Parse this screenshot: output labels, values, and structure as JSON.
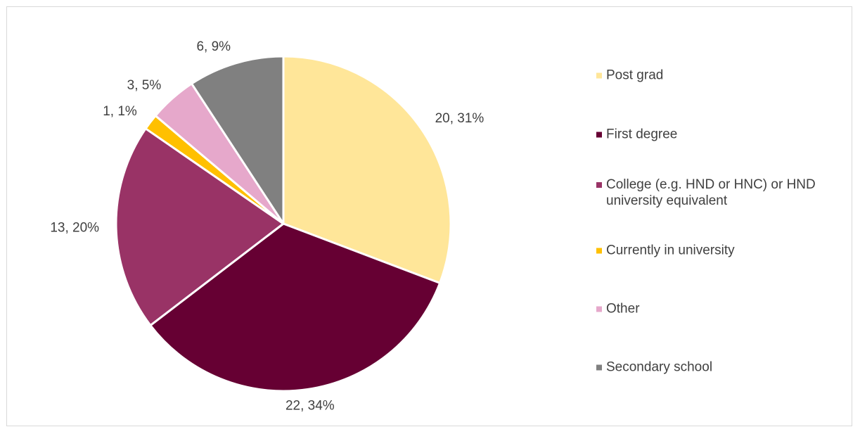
{
  "chart_data": {
    "type": "pie",
    "categories": [
      "Post grad",
      "First degree",
      "College (e.g. HND or HNC) or HND university equivalent",
      "Currently in university",
      "Other",
      "Secondary school"
    ],
    "values": [
      20,
      22,
      13,
      1,
      3,
      6
    ],
    "value_labels": [
      "20, 31%",
      "22, 34%",
      "13, 20%",
      "1, 1%",
      "3, 5%",
      "6, 9%"
    ],
    "colors": [
      "#ffe699",
      "#660033",
      "#993366",
      "#ffc000",
      "#e6a8cb",
      "#808080"
    ],
    "legend": "right"
  }
}
